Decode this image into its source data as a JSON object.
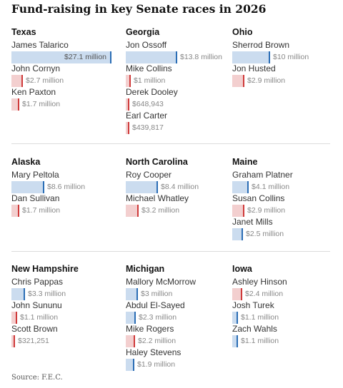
{
  "title": "Fund-raising in key Senate races in 2026",
  "source": "Source: F.E.C.",
  "colors": {
    "dem_fill": "#cbdcef",
    "dem_line": "#2a6db5",
    "rep_fill": "#f3cfcf",
    "rep_line": "#cf3a3a",
    "inside_label": "#555555",
    "outside_label": "#888888"
  },
  "chart_data": {
    "type": "bar",
    "unit": "USD",
    "races": [
      {
        "state": "Texas",
        "candidates": [
          {
            "name": "James Talarico",
            "party": "D",
            "value": 27100000,
            "label": "$27.1 million"
          },
          {
            "name": "John Cornyn",
            "party": "R",
            "value": 2700000,
            "label": "$2.7 million"
          },
          {
            "name": "Ken Paxton",
            "party": "R",
            "value": 1700000,
            "label": "$1.7 million"
          }
        ]
      },
      {
        "state": "Georgia",
        "candidates": [
          {
            "name": "Jon Ossoff",
            "party": "D",
            "value": 13800000,
            "label": "$13.8 million"
          },
          {
            "name": "Mike Collins",
            "party": "R",
            "value": 1000000,
            "label": "$1 million"
          },
          {
            "name": "Derek Dooley",
            "party": "R",
            "value": 648943,
            "label": "$648,943"
          },
          {
            "name": "Earl Carter",
            "party": "R",
            "value": 439817,
            "label": "$439,817"
          }
        ]
      },
      {
        "state": "Ohio",
        "candidates": [
          {
            "name": "Sherrod Brown",
            "party": "D",
            "value": 10000000,
            "label": "$10 million"
          },
          {
            "name": "Jon Husted",
            "party": "R",
            "value": 2900000,
            "label": "$2.9 million"
          }
        ]
      },
      {
        "state": "Alaska",
        "candidates": [
          {
            "name": "Mary Peltola",
            "party": "D",
            "value": 8600000,
            "label": "$8.6 million"
          },
          {
            "name": "Dan Sullivan",
            "party": "R",
            "value": 1700000,
            "label": "$1.7 million"
          }
        ]
      },
      {
        "state": "North Carolina",
        "candidates": [
          {
            "name": "Roy Cooper",
            "party": "D",
            "value": 8400000,
            "label": "$8.4 million"
          },
          {
            "name": "Michael Whatley",
            "party": "R",
            "value": 3200000,
            "label": "$3.2 million"
          }
        ]
      },
      {
        "state": "Maine",
        "candidates": [
          {
            "name": "Graham Platner",
            "party": "D",
            "value": 4100000,
            "label": "$4.1 million"
          },
          {
            "name": "Susan Collins",
            "party": "R",
            "value": 2900000,
            "label": "$2.9 million"
          },
          {
            "name": "Janet Mills",
            "party": "D",
            "value": 2500000,
            "label": "$2.5 million"
          }
        ]
      },
      {
        "state": "New Hampshire",
        "candidates": [
          {
            "name": "Chris Pappas",
            "party": "D",
            "value": 3300000,
            "label": "$3.3 million"
          },
          {
            "name": "John Sununu",
            "party": "R",
            "value": 1100000,
            "label": "$1.1 million"
          },
          {
            "name": "Scott Brown",
            "party": "R",
            "value": 321251,
            "label": "$321,251"
          }
        ]
      },
      {
        "state": "Michigan",
        "candidates": [
          {
            "name": "Mallory McMorrow",
            "party": "D",
            "value": 3000000,
            "label": "$3 million"
          },
          {
            "name": "Abdul El-Sayed",
            "party": "D",
            "value": 2300000,
            "label": "$2.3 million"
          },
          {
            "name": "Mike Rogers",
            "party": "R",
            "value": 2200000,
            "label": "$2.2 million"
          },
          {
            "name": "Haley Stevens",
            "party": "D",
            "value": 1900000,
            "label": "$1.9 million"
          }
        ]
      },
      {
        "state": "Iowa",
        "candidates": [
          {
            "name": "Ashley Hinson",
            "party": "R",
            "value": 2400000,
            "label": "$2.4 million"
          },
          {
            "name": "Josh Turek",
            "party": "D",
            "value": 1100000,
            "label": "$1.1 million"
          },
          {
            "name": "Zach Wahls",
            "party": "D",
            "value": 1100000,
            "label": "$1.1 million"
          }
        ]
      }
    ]
  }
}
